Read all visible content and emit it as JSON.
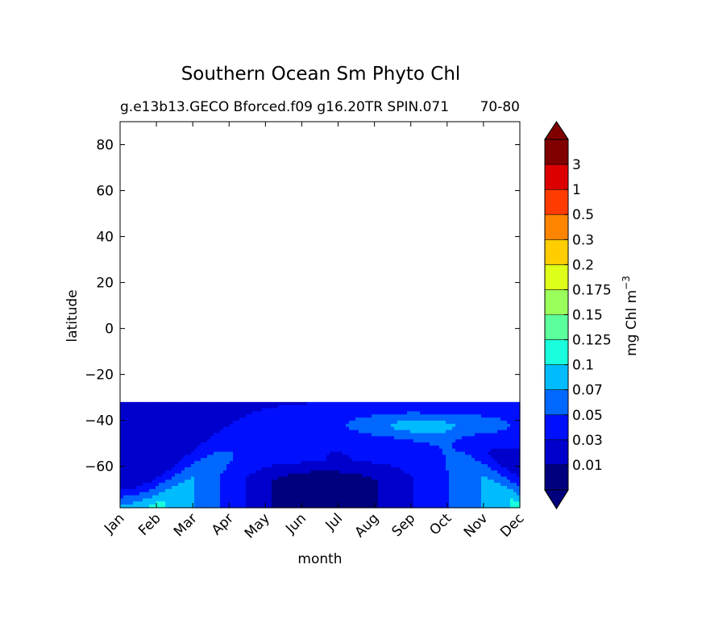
{
  "chart_data": {
    "type": "heatmap",
    "title": "Southern Ocean Sm Phyto Chl",
    "subtitle_left": "g.e13b13.GECO Bforced.f09 g16.20TR SPIN.071",
    "subtitle_right": "70-80",
    "xlabel": "month",
    "ylabel": "latitude",
    "x_ticks": [
      "Jan",
      "Feb",
      "Mar",
      "Apr",
      "May",
      "Jun",
      "Jul",
      "Aug",
      "Sep",
      "Oct",
      "Nov",
      "Dec"
    ],
    "y_ticks": [
      80,
      60,
      40,
      20,
      0,
      -20,
      -40,
      -60
    ],
    "y_tick_labels": [
      "80",
      "60",
      "40",
      "20",
      "0",
      "−20",
      "−40",
      "−60"
    ],
    "ylim": [
      -78,
      90
    ],
    "data_lat_range": [
      -78,
      -32
    ],
    "colorbar": {
      "label": "mg Chl m",
      "label_exp": "−3",
      "levels": [
        0.01,
        0.03,
        0.05,
        0.07,
        0.1,
        0.125,
        0.15,
        0.175,
        0.2,
        0.3,
        0.5,
        1,
        3
      ],
      "level_labels": [
        "0.01",
        "0.03",
        "0.05",
        "0.07",
        "0.1",
        "0.125",
        "0.15",
        "0.175",
        "0.2",
        "0.3",
        "0.5",
        "1",
        "3"
      ],
      "colors": [
        "#00007f",
        "#0000cd",
        "#0010ff",
        "#0068ff",
        "#00bcff",
        "#19ffde",
        "#5bff9b",
        "#9bff5b",
        "#deff19",
        "#ffcd00",
        "#ff8400",
        "#ff3b00",
        "#dd0000",
        "#800000"
      ],
      "extend": "both"
    }
  }
}
